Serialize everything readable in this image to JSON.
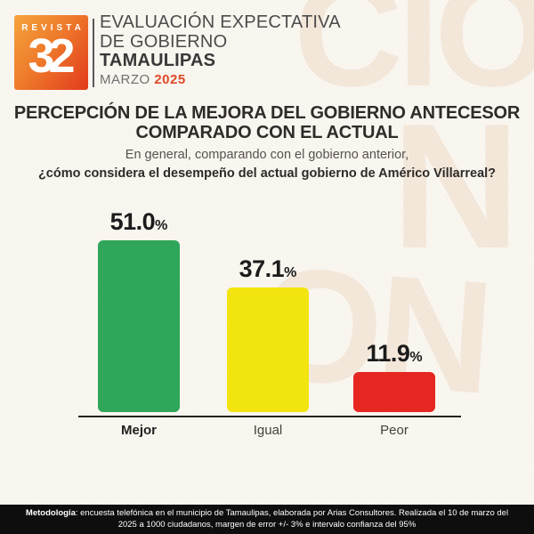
{
  "header": {
    "logo": {
      "brand": "REVISTA",
      "number": "32"
    },
    "line1": "EVALUACIÓN EXPECTATIVA",
    "line2": "DE GOBIERNO",
    "line3": "TAMAULIPAS",
    "month": "MARZO ",
    "year": "2025"
  },
  "title": {
    "line1": "PERCEPCIÓN DE LA MEJORA DEL GOBIERNO ANTECESOR",
    "line2": "COMPARADO CON EL ACTUAL",
    "subtitle": "En general, comparando con el gobierno anterior,",
    "question": "¿cómo considera el desempeño del actual gobierno de Américo Villarreal?"
  },
  "chart_data": {
    "type": "bar",
    "categories": [
      "Mejor",
      "Igual",
      "Peor"
    ],
    "values": [
      51.0,
      37.1,
      11.9
    ],
    "value_labels": [
      "51.0",
      "37.1",
      "11.9"
    ],
    "unit": "%",
    "colors": [
      "#2fa65a",
      "#f2e40e",
      "#e62621"
    ],
    "ylim": [
      0,
      55
    ],
    "grid": false,
    "legend": "none",
    "emphasized_category": "Mejor",
    "title": "Percepción de la mejora del gobierno antecesor comparado con el actual"
  },
  "watermark": {
    "fragments": [
      "CIÓ",
      "N",
      "ON"
    ]
  },
  "footer": {
    "label": "Metodología",
    "text": ": encuesta telefónica en el municipio de Tamaulipas, elaborada por Arias Consultores. Realizada el 10 de marzo del 2025 a 1000 ciudadanos, margen de error +/- 3% e intervalo confianza del 95%"
  }
}
